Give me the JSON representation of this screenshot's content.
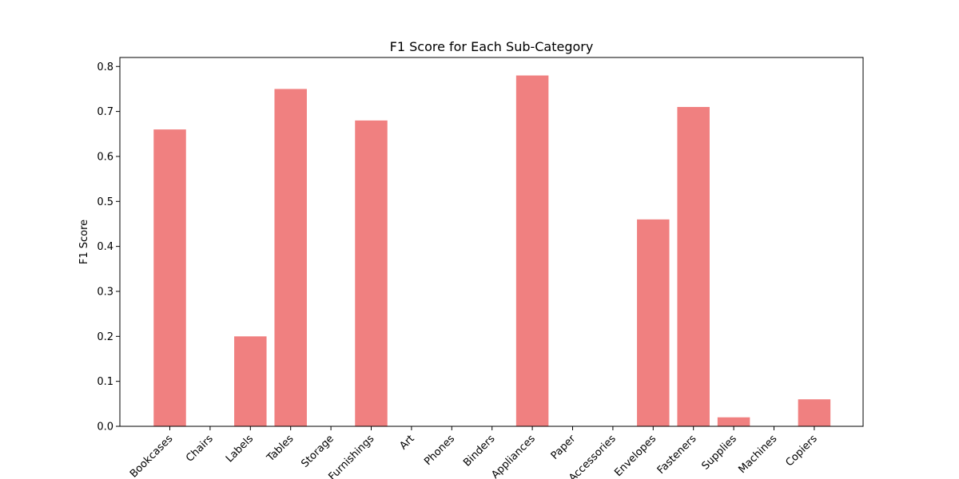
{
  "chart_data": {
    "type": "bar",
    "title": "F1 Score for Each Sub-Category",
    "xlabel": "",
    "ylabel": "F1 Score",
    "categories": [
      "Bookcases",
      "Chairs",
      "Labels",
      "Tables",
      "Storage",
      "Furnishings",
      "Art",
      "Phones",
      "Binders",
      "Appliances",
      "Paper",
      "Accessories",
      "Envelopes",
      "Fasteners",
      "Supplies",
      "Machines",
      "Copiers"
    ],
    "values": [
      0.66,
      0.0,
      0.2,
      0.75,
      0.0,
      0.68,
      0.0,
      0.0,
      0.0,
      0.78,
      0.0,
      0.0,
      0.46,
      0.71,
      0.02,
      0.0,
      0.06
    ],
    "ylim": [
      0,
      0.82
    ],
    "yticks": [
      "0.0",
      "0.1",
      "0.2",
      "0.3",
      "0.4",
      "0.5",
      "0.6",
      "0.7",
      "0.8"
    ],
    "grid": false,
    "bar_color": "#f08080"
  }
}
